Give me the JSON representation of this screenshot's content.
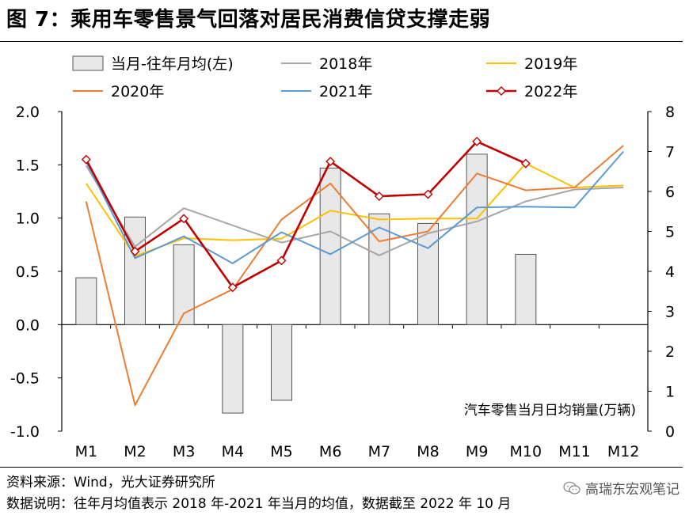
{
  "title": "图 7：乘用车零售景气回落对居民消费信贷支撑走弱",
  "footer": {
    "source": "资料来源：Wind，光大证券研究所",
    "description": "数据说明：往年月均值表示 2018 年-2021 年当月的均值，数据截至 2022 年 10 月"
  },
  "watermark": {
    "text": "高瑞东宏观笔记",
    "icon": "wechat-icon"
  },
  "colors": {
    "bar_fill": "#e8e8e8",
    "bar_stroke": "#555555",
    "s2018": "#a6a6a6",
    "s2019": "#ffc000",
    "s2020": "#ed7d31",
    "s2021": "#5b9bd5",
    "s2022": "#c00000"
  },
  "chart_data": {
    "type": "bar+line",
    "categories": [
      "M1",
      "M2",
      "M3",
      "M4",
      "M5",
      "M6",
      "M7",
      "M8",
      "M9",
      "M10",
      "M11",
      "M12"
    ],
    "left_axis": {
      "ylim": [
        -1.0,
        2.0
      ],
      "ticks": [
        "2.0",
        "1.5",
        "1.0",
        "0.5",
        "0.0",
        "-0.5",
        "-1.0"
      ]
    },
    "right_axis": {
      "ylim": [
        0,
        8
      ],
      "ticks": [
        "8",
        "7",
        "6",
        "5",
        "4",
        "3",
        "2",
        "1",
        "0"
      ],
      "label": "汽车零售当月日均销量(万辆)"
    },
    "bars": {
      "name": "当月-往年月均(左)",
      "values": [
        0.44,
        1.01,
        0.75,
        -0.83,
        -0.71,
        1.47,
        1.04,
        0.95,
        1.6,
        0.66,
        null,
        null
      ]
    },
    "series": [
      {
        "name": "2018年",
        "key": "s2018",
        "marker": false,
        "values": [
          6.65,
          4.62,
          5.58,
          null,
          4.72,
          5.0,
          4.4,
          4.95,
          5.25,
          5.75,
          6.05,
          6.1
        ]
      },
      {
        "name": "2019年",
        "key": "s2019",
        "marker": false,
        "values": [
          6.2,
          4.38,
          4.83,
          4.78,
          4.82,
          5.52,
          5.3,
          5.32,
          5.32,
          6.7,
          6.1,
          6.15
        ]
      },
      {
        "name": "2020年",
        "key": "s2020",
        "marker": false,
        "values": [
          5.75,
          0.65,
          2.95,
          3.55,
          5.3,
          6.2,
          4.75,
          5.0,
          6.45,
          6.03,
          6.1,
          7.15
        ]
      },
      {
        "name": "2021年",
        "key": "s2021",
        "marker": false,
        "values": [
          6.75,
          4.33,
          4.88,
          4.2,
          4.98,
          4.43,
          5.1,
          4.58,
          5.6,
          5.62,
          5.6,
          7.0
        ]
      },
      {
        "name": "2022年",
        "key": "s2022",
        "marker": true,
        "values": [
          6.8,
          4.5,
          5.32,
          3.6,
          4.27,
          6.75,
          5.88,
          5.93,
          7.25,
          6.7,
          null,
          null
        ]
      }
    ]
  }
}
